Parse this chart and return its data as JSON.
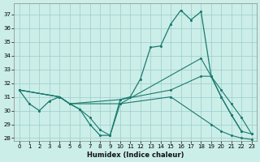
{
  "xlabel": "Humidex (Indice chaleur)",
  "bg_color": "#cceee8",
  "grid_color": "#99cccc",
  "line_color": "#1a7a6e",
  "xlim": [
    -0.5,
    23.5
  ],
  "ylim": [
    27.8,
    37.8
  ],
  "yticks": [
    28,
    29,
    30,
    31,
    32,
    33,
    34,
    35,
    36,
    37
  ],
  "xticks": [
    0,
    1,
    2,
    3,
    4,
    5,
    6,
    7,
    8,
    9,
    10,
    11,
    12,
    13,
    14,
    15,
    16,
    17,
    18,
    19,
    20,
    21,
    22,
    23
  ],
  "line1_x": [
    0,
    1,
    2,
    3,
    4,
    5,
    6,
    7,
    8,
    9,
    10,
    11,
    12,
    13,
    14,
    15,
    16,
    17,
    18,
    19,
    20,
    21,
    22
  ],
  "line1_y": [
    31.5,
    30.5,
    30.0,
    30.7,
    31.0,
    30.5,
    30.1,
    29.0,
    28.2,
    28.2,
    30.8,
    31.0,
    32.3,
    34.6,
    34.7,
    36.3,
    37.3,
    36.6,
    37.2,
    32.5,
    31.0,
    29.7,
    28.5
  ],
  "line2_x": [
    0,
    4,
    5,
    6,
    7,
    8,
    9,
    10,
    18,
    19,
    20,
    21,
    22,
    23
  ],
  "line2_y": [
    31.5,
    31.0,
    30.5,
    30.1,
    29.5,
    28.6,
    28.2,
    30.5,
    33.8,
    32.5,
    31.0,
    29.7,
    28.5,
    28.3
  ],
  "line3_x": [
    0,
    4,
    5,
    10,
    15,
    18,
    19,
    20,
    21,
    22,
    23
  ],
  "line3_y": [
    31.5,
    31.0,
    30.5,
    30.8,
    31.5,
    32.5,
    32.5,
    31.5,
    30.5,
    29.5,
    28.3
  ],
  "line4_x": [
    0,
    4,
    5,
    10,
    15,
    19,
    20,
    21,
    22,
    23
  ],
  "line4_y": [
    31.5,
    31.0,
    30.5,
    30.5,
    31.0,
    29.0,
    28.5,
    28.2,
    28.0,
    27.9
  ]
}
